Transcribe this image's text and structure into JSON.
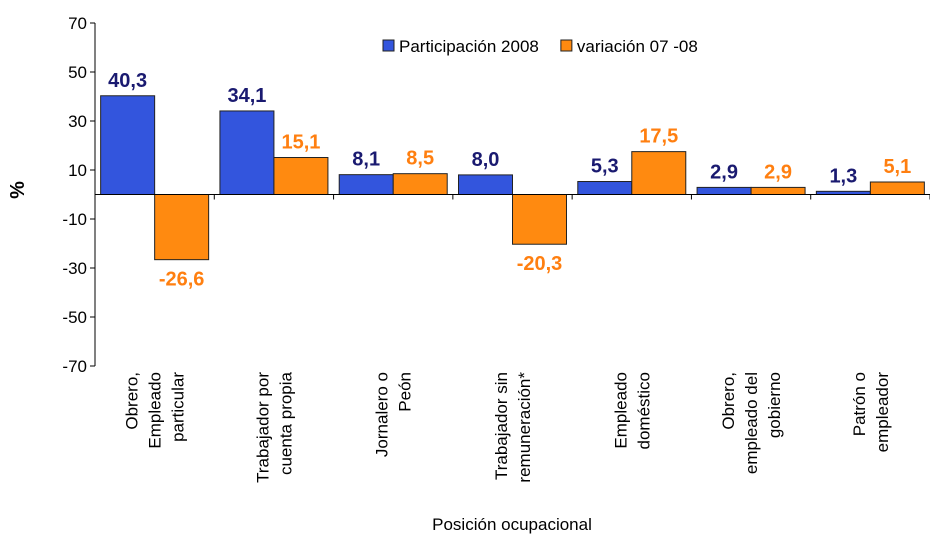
{
  "chart_data": {
    "type": "bar",
    "x_label": "Posición ocupacional",
    "y_label": "%",
    "categories": [
      "Obrero,\nEmpleado\nparticular",
      "Trabajador por\ncuenta propia",
      "Jornalero o\nPeón",
      "Trabajador sin\nremuneración*",
      "Empleado\ndoméstico",
      "Obrero,\nempleado del\ngobierno",
      "Patrón o\nempleador"
    ],
    "series": [
      {
        "name": "Participación 2008",
        "color": "#3355dd",
        "label_color": "#1a1a70",
        "values": [
          40.3,
          34.1,
          8.1,
          8.0,
          5.3,
          2.9,
          1.3
        ],
        "value_labels": [
          "40,3",
          "34,1",
          "8,1",
          "8,0",
          "5,3",
          "2,9",
          "1,3"
        ]
      },
      {
        "name": "variación 07 -08",
        "color": "#ff8a10",
        "label_color": "#ff7f10",
        "values": [
          -26.6,
          15.1,
          8.5,
          -20.3,
          17.5,
          2.9,
          5.1
        ],
        "value_labels": [
          "-26,6",
          "15,1",
          "8,5",
          "-20,3",
          "17,5",
          "2,9",
          "5,1"
        ]
      }
    ],
    "ylim": [
      -70,
      70
    ],
    "yticks": [
      -70,
      -50,
      -30,
      -10,
      10,
      30,
      50,
      70
    ],
    "grid": false,
    "legend": "top"
  }
}
